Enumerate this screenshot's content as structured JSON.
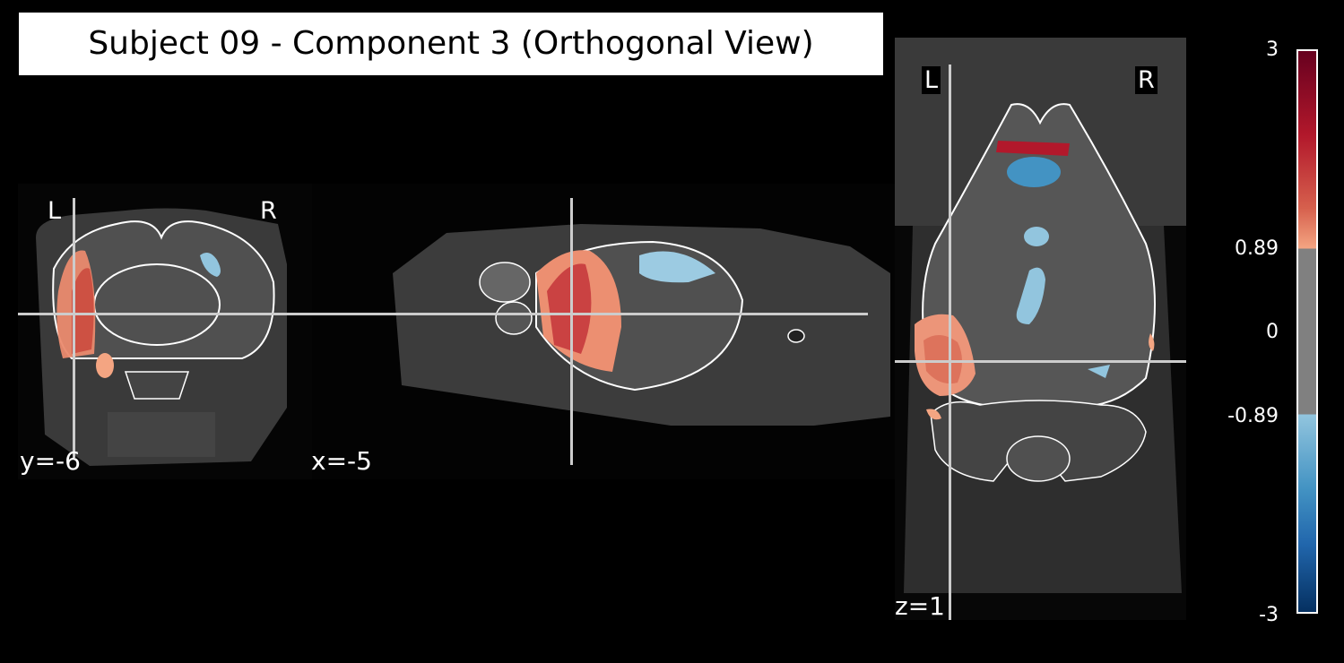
{
  "title": "Subject 09 - Component 3 (Orthogonal View)",
  "views": {
    "coronal": {
      "coord": "y=-6",
      "left_label": "L",
      "right_label": "R"
    },
    "sagittal": {
      "coord": "x=-5"
    },
    "axial": {
      "coord": "z=1",
      "left_label": "L",
      "right_label": "R"
    }
  },
  "colorbar": {
    "ticks": [
      "3",
      "0.89",
      "0",
      "-0.89",
      "-3"
    ],
    "range": [
      -3,
      3
    ],
    "threshold": 0.89,
    "colormap": "RdBu_r",
    "colors": {
      "max": "#67001f",
      "upper": "#f4a582",
      "mid": "#808080",
      "lower": "#92c5de",
      "min": "#053061"
    }
  }
}
